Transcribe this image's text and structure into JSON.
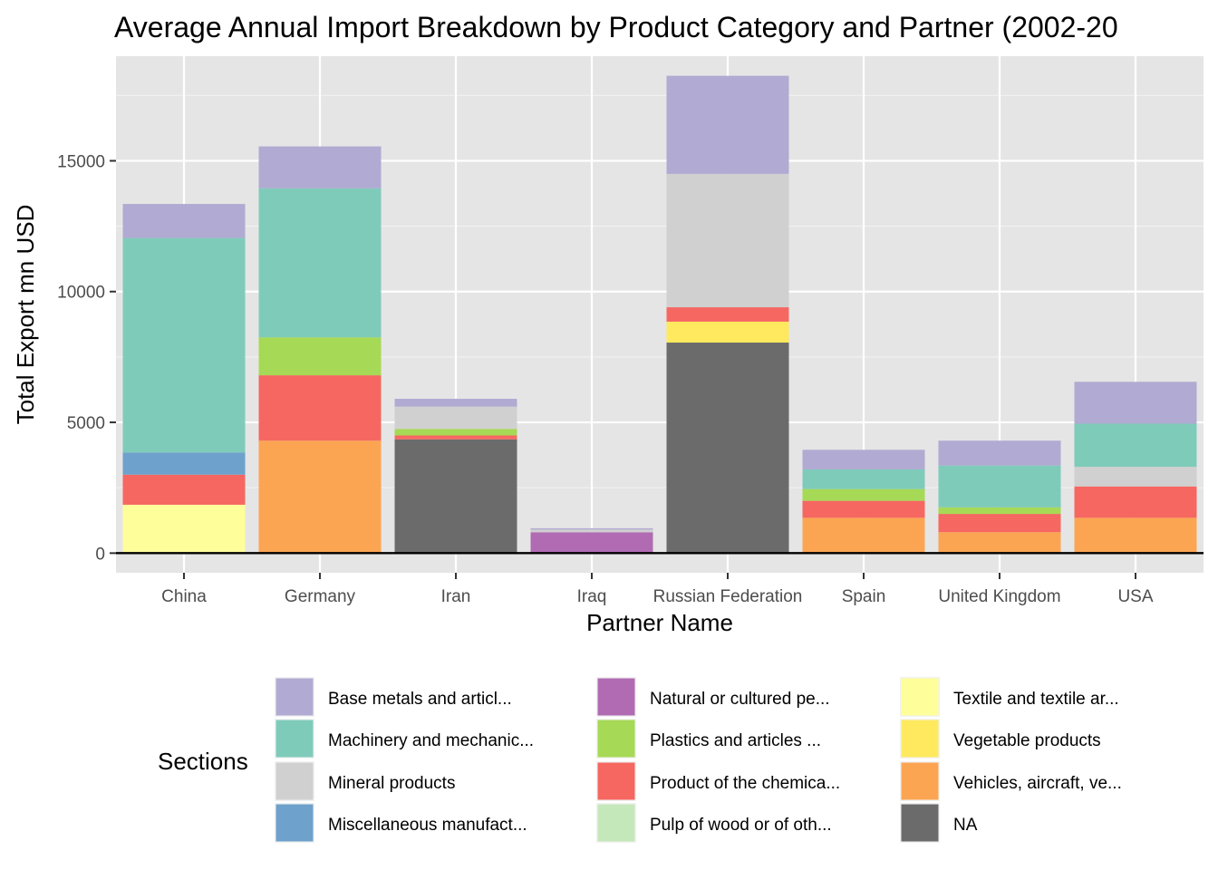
{
  "chart_data": {
    "type": "bar",
    "stacked": true,
    "title": "Average Annual Import Breakdown by Product Category and Partner (2002-20",
    "xlabel": "Partner Name",
    "ylabel": "Total Export mn USD",
    "ylim": [
      -750,
      19000
    ],
    "y_ticks": [
      0,
      5000,
      10000,
      15000
    ],
    "y_tick_labels": [
      "0",
      "5000",
      "10000",
      "15000"
    ],
    "grid": true,
    "legend_title": "Sections",
    "legend_position": "bottom",
    "categories": [
      "China",
      "Germany",
      "Iran",
      "Iraq",
      "Russian Federation",
      "Spain",
      "United Kingdom",
      "USA"
    ],
    "series": [
      {
        "name": "NA",
        "color": "#6b6b6b",
        "values": [
          0,
          0,
          4350,
          0,
          8050,
          0,
          0,
          0
        ]
      },
      {
        "name": "Vehicles, aircraft, ve...",
        "color": "#fba552",
        "values": [
          0,
          4300,
          0,
          0,
          0,
          1350,
          800,
          1350
        ]
      },
      {
        "name": "Vegetable products",
        "color": "#fee95f",
        "values": [
          0,
          0,
          0,
          0,
          800,
          0,
          0,
          0
        ]
      },
      {
        "name": "Textile and textile ar...",
        "color": "#fefe9b",
        "values": [
          1850,
          0,
          0,
          0,
          0,
          0,
          0,
          0
        ]
      },
      {
        "name": "Pulp of wood or of oth...",
        "color": "#c5e8bb",
        "values": [
          0,
          0,
          0,
          0,
          0,
          0,
          0,
          0
        ]
      },
      {
        "name": "Product of the chemica...",
        "color": "#f66761",
        "values": [
          1150,
          2500,
          150,
          0,
          550,
          650,
          700,
          1200
        ]
      },
      {
        "name": "Plastics and articles ...",
        "color": "#a6d955",
        "values": [
          0,
          1450,
          250,
          0,
          0,
          450,
          250,
          0
        ]
      },
      {
        "name": "Natural or cultured pe...",
        "color": "#b06bb3",
        "values": [
          0,
          0,
          0,
          800,
          0,
          0,
          0,
          0
        ]
      },
      {
        "name": "Miscellaneous manufact...",
        "color": "#6ea1cb",
        "values": [
          850,
          0,
          0,
          0,
          0,
          0,
          0,
          0
        ]
      },
      {
        "name": "Mineral products",
        "color": "#d0d0d0",
        "values": [
          0,
          0,
          850,
          100,
          5100,
          0,
          0,
          750
        ]
      },
      {
        "name": "Machinery and mechanic...",
        "color": "#7fcbba",
        "values": [
          8200,
          5700,
          0,
          0,
          0,
          750,
          1600,
          1650
        ]
      },
      {
        "name": "Base metals and articl...",
        "color": "#b1aad2",
        "values": [
          1300,
          1600,
          300,
          50,
          3750,
          750,
          950,
          1600
        ]
      }
    ],
    "legend_columns": [
      [
        "Base metals and articl...",
        "Machinery and mechanic...",
        "Mineral products",
        "Miscellaneous manufact..."
      ],
      [
        "Natural or cultured pe...",
        "Plastics and articles ...",
        "Product of the chemica...",
        "Pulp of wood or of oth..."
      ],
      [
        "Textile and textile ar...",
        "Vegetable products",
        "Vehicles, aircraft, ve...",
        "NA"
      ]
    ]
  }
}
